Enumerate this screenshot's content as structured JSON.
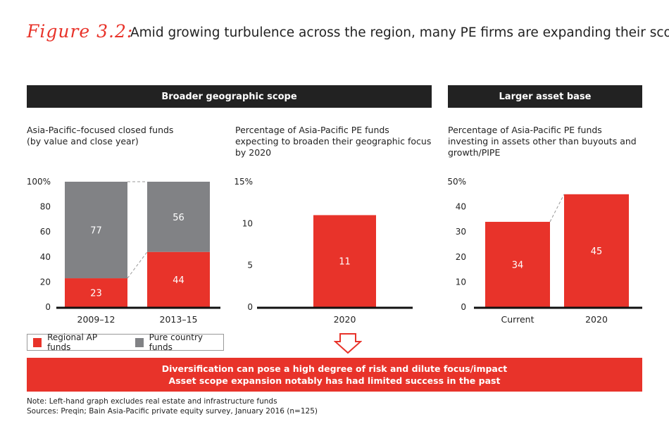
{
  "figure": {
    "label": "Figure 3.2:",
    "title": "Amid growing turbulence across the region, many PE firms are expanding their scope"
  },
  "headers": {
    "geographic": "Broader geographic scope",
    "asset": "Larger asset base"
  },
  "subtitles": {
    "chart1": [
      "Asia-Pacific–focused closed funds",
      "(by value and close year)"
    ],
    "chart2": [
      "Percentage of Asia-Pacific PE funds",
      "expecting to broaden their geographic focus",
      "by 2020"
    ],
    "chart3": [
      "Percentage of Asia-Pacific PE funds",
      "investing in assets other than buyouts and",
      "growth/PIPE"
    ]
  },
  "colors": {
    "red": "#e8332a",
    "gray": "#818285",
    "dark": "#222222"
  },
  "chart_data": [
    {
      "type": "bar",
      "stacked": true,
      "categories": [
        "2009–12",
        "2013–15"
      ],
      "series": [
        {
          "name": "Regional AP funds",
          "values": [
            23,
            44
          ],
          "color": "#e8332a"
        },
        {
          "name": "Pure country funds",
          "values": [
            77,
            56
          ],
          "color": "#818285"
        }
      ],
      "yticks": [
        "0",
        "20",
        "40",
        "60",
        "80",
        "100%"
      ],
      "ylim": [
        0,
        100
      ]
    },
    {
      "type": "bar",
      "categories": [
        "2020"
      ],
      "values": [
        11
      ],
      "yticks": [
        "0",
        "5",
        "10",
        "15%"
      ],
      "ylim": [
        0,
        15
      ]
    },
    {
      "type": "bar",
      "categories": [
        "Current",
        "2020"
      ],
      "values": [
        34,
        45
      ],
      "yticks": [
        "0",
        "10",
        "20",
        "30",
        "40",
        "50%"
      ],
      "ylim": [
        0,
        50
      ]
    }
  ],
  "legend": {
    "items": [
      {
        "label": "Regional AP funds",
        "color": "#e8332a"
      },
      {
        "label": "Pure country funds",
        "color": "#818285"
      }
    ]
  },
  "banner": {
    "line1": "Diversification can pose a high degree of risk and dilute focus/impact",
    "line2": "Asset scope expansion notably has had limited success in the past"
  },
  "notes": {
    "note": "Note: Left-hand graph excludes real estate and infrastructure funds",
    "sources": "Sources: Preqin; Bain Asia-Pacific private equity survey, January 2016 (n=125)"
  }
}
